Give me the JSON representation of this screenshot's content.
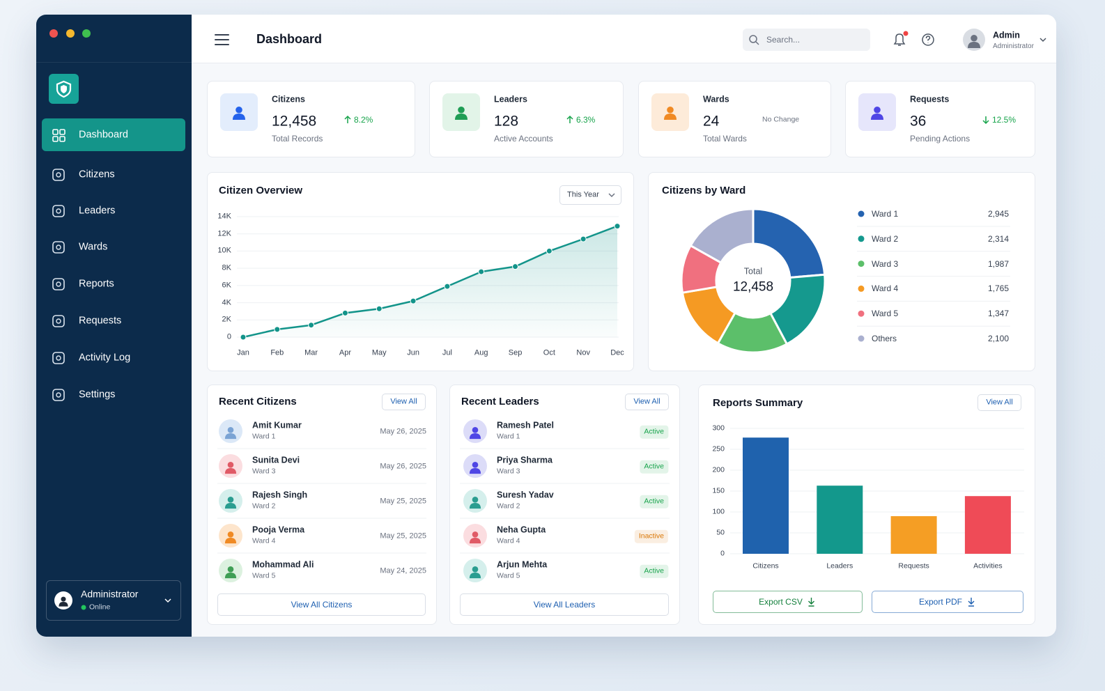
{
  "sidebar": {
    "nav": [
      "Dashboard",
      "Citizens",
      "Leaders",
      "Wards",
      "Reports",
      "Requests",
      "Activity Log",
      "Settings"
    ],
    "user": {
      "name": "Administrator",
      "status": "Online"
    }
  },
  "header": {
    "title": "Dashboard",
    "search_placeholder": "Search...",
    "user_name": "Admin",
    "user_role": "Administrator"
  },
  "stats": [
    {
      "label": "Citizens",
      "value": "12,458",
      "change": "8.2%",
      "trend": "up",
      "change_color": "#16a34a",
      "sub": "Total Records",
      "icon_color": "#2563eb",
      "icon_bg": "#e3edfc"
    },
    {
      "label": "Leaders",
      "value": "128",
      "change": "6.3%",
      "trend": "up",
      "change_color": "#16a34a",
      "sub": "Active Accounts",
      "icon_color": "#1f9d55",
      "icon_bg": "#e2f4e8"
    },
    {
      "label": "Wards",
      "value": "24",
      "change": "No Change",
      "trend": "none",
      "change_color": "#6b7280",
      "sub": "Total Wards",
      "icon_color": "#f08a24",
      "icon_bg": "#fdebd9"
    },
    {
      "label": "Requests",
      "value": "36",
      "change": "12.5%",
      "trend": "down",
      "change_color": "#16a34a",
      "sub": "Pending Actions",
      "icon_color": "#4f46e5",
      "icon_bg": "#e6e6fb"
    }
  ],
  "line_chart": {
    "type": "line",
    "title": "Citizen Overview",
    "dropdown": "This Year",
    "categories": [
      "Jan",
      "Feb",
      "Mar",
      "Apr",
      "May",
      "Jun",
      "Jul",
      "Aug",
      "Sep",
      "Oct",
      "Nov",
      "Dec"
    ],
    "values": [
      0,
      900,
      1400,
      2800,
      3300,
      4200,
      5900,
      7600,
      8200,
      10000,
      11400,
      12900
    ],
    "color": "#13948a",
    "ylim": [
      0,
      14000
    ],
    "yticks": [
      0,
      {
        "value": 2000,
        "label": "2K"
      },
      {
        "value": 4000,
        "label": "4K"
      },
      {
        "value": 6000,
        "label": "6K"
      },
      {
        "value": 8000,
        "label": "8K"
      },
      {
        "value": 10000,
        "label": "10K"
      },
      {
        "value": 12000,
        "label": "12K"
      },
      {
        "value": 14000,
        "label": "14K"
      }
    ],
    "grid": true
  },
  "donut_chart": {
    "type": "donut",
    "title": "Citizens by Ward",
    "center_label": "Total",
    "center_value": "12,458",
    "categories": [
      "Ward 1",
      "Ward 2",
      "Ward 3",
      "Ward 4",
      "Ward 5",
      "Others"
    ],
    "values": [
      2945,
      2314,
      1987,
      1765,
      1347,
      2100
    ],
    "value_labels": [
      "2,945",
      "2,314",
      "1,987",
      "1,765",
      "1,347",
      "2,100"
    ],
    "colors": [
      "#2563b0",
      "#15998e",
      "#5cbf6a",
      "#f59a23",
      "#f0707f",
      "#aab0cf"
    ]
  },
  "recent_citizens": {
    "title": "Recent Citizens",
    "action": "View All",
    "rows": [
      {
        "name": "Amit Kumar",
        "ward": "Ward 1",
        "date": "May 26, 2025"
      },
      {
        "name": "Sunita Devi",
        "ward": "Ward 3",
        "date": "May 26, 2025"
      },
      {
        "name": "Rajesh Singh",
        "ward": "Ward 2",
        "date": "May 25, 2025"
      },
      {
        "name": "Pooja Verma",
        "ward": "Ward 4",
        "date": "May 25, 2025"
      },
      {
        "name": "Mohammad Ali",
        "ward": "Ward 5",
        "date": "May 24, 2025"
      }
    ],
    "footer": "View All Citizens"
  },
  "recent_leaders": {
    "title": "Recent Leaders",
    "action": "View All",
    "rows": [
      {
        "name": "Ramesh Patel",
        "ward": "Ward 1",
        "status": "Active",
        "status_color": "#16a34a"
      },
      {
        "name": "Priya Sharma",
        "ward": "Ward 3",
        "status": "Active",
        "status_color": "#16a34a"
      },
      {
        "name": "Suresh Yadav",
        "ward": "Ward 2",
        "status": "Active",
        "status_color": "#16a34a"
      },
      {
        "name": "Neha Gupta",
        "ward": "Ward 4",
        "status": "Inactive",
        "status_color": "#d97706"
      },
      {
        "name": "Arjun Mehta",
        "ward": "Ward 5",
        "status": "Active",
        "status_color": "#16a34a"
      }
    ],
    "footer": "View All Leaders"
  },
  "bar_chart": {
    "type": "bar",
    "title": "Reports Summary",
    "action": "View All",
    "categories": [
      "Citizens",
      "Leaders",
      "Requests",
      "Activities"
    ],
    "values": [
      278,
      163,
      90,
      138
    ],
    "colors": [
      "#1f62ad",
      "#13988c",
      "#f59e24",
      "#ef4b57"
    ],
    "ylim": [
      0,
      300
    ],
    "yticks": [
      0,
      50,
      100,
      150,
      200,
      250,
      300
    ],
    "grid": true,
    "buttons": [
      {
        "label": "Export CSV",
        "color": "#15803d"
      },
      {
        "label": "Export PDF",
        "color": "#1d5fb0"
      }
    ]
  }
}
